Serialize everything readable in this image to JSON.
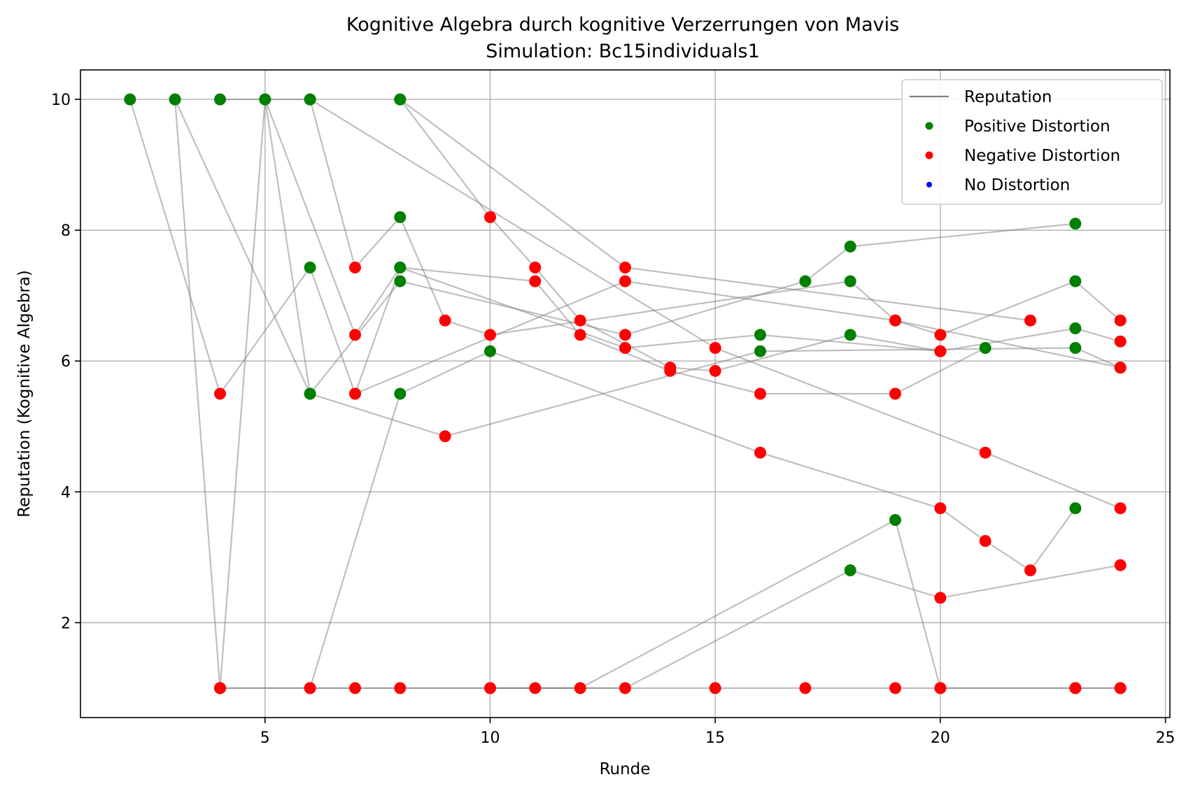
{
  "chart_data": {
    "type": "scatter",
    "title": "Kognitive Algebra durch kognitive Verzerrungen von Mavis",
    "subtitle": "Simulation: Bc15individuals1",
    "xlabel": "Runde",
    "ylabel": "Reputation (Kognitive Algebra)",
    "xlim": [
      0.9,
      25.1
    ],
    "ylim": [
      0.55,
      10.45
    ],
    "xticks": [
      5,
      10,
      15,
      20,
      25
    ],
    "yticks": [
      2,
      4,
      6,
      8,
      10
    ],
    "grid": true,
    "legend_position": "top-right",
    "legend": [
      {
        "label": "Reputation",
        "kind": "line",
        "color": "#808080"
      },
      {
        "label": "Positive Distortion",
        "kind": "dot",
        "color": "#008000"
      },
      {
        "label": "Negative Distortion",
        "kind": "dot",
        "color": "#ff0000"
      },
      {
        "label": "No Distortion",
        "kind": "dot",
        "color": "#0000ff"
      }
    ],
    "colors": {
      "positive": "#008000",
      "negative": "#ff0000",
      "none": "#0000ff",
      "line": "#808080"
    },
    "series": [
      {
        "points": [
          [
            2,
            10,
            "p"
          ],
          [
            4,
            5.5,
            "n"
          ],
          [
            6,
            7.43,
            "p"
          ],
          [
            7,
            5.5,
            "n"
          ],
          [
            8,
            7.43,
            "p"
          ],
          [
            13,
            6.2,
            "n"
          ],
          [
            16,
            6.4,
            "p"
          ],
          [
            20,
            6.15,
            "n"
          ],
          [
            23,
            6.5,
            "p"
          ],
          [
            24,
            6.3,
            "n"
          ]
        ]
      },
      {
        "points": [
          [
            3,
            10,
            "p"
          ],
          [
            4,
            1,
            "n"
          ],
          [
            5,
            10,
            "p"
          ],
          [
            6,
            5.5,
            "p"
          ],
          [
            9,
            4.85,
            "n"
          ],
          [
            16,
            6.15,
            "p"
          ],
          [
            23,
            6.2,
            "p"
          ],
          [
            24,
            5.9,
            "n"
          ]
        ]
      },
      {
        "points": [
          [
            3,
            10,
            "p"
          ],
          [
            6,
            5.5,
            "p"
          ],
          [
            8,
            7.22,
            "p"
          ],
          [
            13,
            6.4,
            "n"
          ],
          [
            17,
            7.22,
            "p"
          ],
          [
            18,
            7.75,
            "p"
          ],
          [
            23,
            8.1,
            "p"
          ]
        ]
      },
      {
        "points": [
          [
            4,
            10,
            "p"
          ],
          [
            6,
            10,
            "p"
          ],
          [
            7,
            7.43,
            "n"
          ],
          [
            8,
            8.2,
            "p"
          ],
          [
            9,
            6.62,
            "n"
          ],
          [
            10,
            6.4,
            "n"
          ],
          [
            18,
            7.22,
            "p"
          ],
          [
            19,
            6.62,
            "n"
          ],
          [
            20,
            6.4,
            "n"
          ],
          [
            23,
            7.22,
            "p"
          ],
          [
            24,
            6.62,
            "n"
          ]
        ]
      },
      {
        "points": [
          [
            5,
            10,
            "p"
          ],
          [
            7,
            6.4,
            "n"
          ],
          [
            8,
            7.43,
            "p"
          ],
          [
            11,
            7.22,
            "n"
          ],
          [
            12,
            6.4,
            "n"
          ],
          [
            14,
            5.85,
            "n"
          ],
          [
            16,
            5.5,
            "n"
          ],
          [
            19,
            5.5,
            "n"
          ],
          [
            21,
            6.2,
            "p"
          ]
        ]
      },
      {
        "points": [
          [
            8,
            10,
            "p"
          ],
          [
            10,
            8.2,
            "n"
          ],
          [
            11,
            7.43,
            "n"
          ],
          [
            12,
            6.62,
            "n"
          ],
          [
            14,
            5.9,
            "n"
          ],
          [
            15,
            5.85,
            "n"
          ],
          [
            18,
            6.4,
            "p"
          ],
          [
            20,
            6.15,
            "n"
          ]
        ]
      },
      {
        "points": [
          [
            8,
            10,
            "p"
          ],
          [
            13,
            7.43,
            "n"
          ],
          [
            22,
            6.62,
            "n"
          ]
        ]
      },
      {
        "points": [
          [
            4,
            1,
            "n"
          ],
          [
            6,
            1,
            "n"
          ],
          [
            8,
            5.5,
            "p"
          ],
          [
            10,
            6.15,
            "p"
          ],
          [
            16,
            4.6,
            "n"
          ],
          [
            20,
            3.75,
            "n"
          ],
          [
            21,
            3.25,
            "n"
          ],
          [
            22,
            2.8,
            "n"
          ],
          [
            23,
            3.75,
            "p"
          ]
        ]
      },
      {
        "points": [
          [
            4,
            1,
            "n"
          ],
          [
            7,
            1,
            "n"
          ],
          [
            10,
            1,
            "n"
          ],
          [
            12,
            1,
            "n"
          ],
          [
            19,
            3.57,
            "p"
          ],
          [
            20,
            1,
            "n"
          ],
          [
            23,
            1,
            "n"
          ],
          [
            24,
            1,
            "n"
          ]
        ]
      },
      {
        "points": [
          [
            6,
            1,
            "n"
          ],
          [
            8,
            1,
            "n"
          ],
          [
            11,
            1,
            "n"
          ],
          [
            13,
            1,
            "n"
          ],
          [
            18,
            2.8,
            "p"
          ],
          [
            20,
            2.38,
            "n"
          ],
          [
            24,
            2.88,
            "n"
          ]
        ]
      },
      {
        "points": [
          [
            10,
            1,
            "n"
          ],
          [
            15,
            1,
            "n"
          ],
          [
            17,
            1,
            "n"
          ],
          [
            19,
            1,
            "n"
          ],
          [
            20,
            1,
            "n"
          ],
          [
            23,
            1,
            "n"
          ],
          [
            24,
            1,
            "n"
          ]
        ]
      },
      {
        "points": [
          [
            7,
            5.5,
            "n"
          ],
          [
            13,
            7.22,
            "n"
          ],
          [
            19,
            6.62,
            "n"
          ],
          [
            24,
            5.9,
            "n"
          ]
        ]
      },
      {
        "points": [
          [
            6,
            10,
            "p"
          ],
          [
            15,
            6.2,
            "n"
          ],
          [
            21,
            4.6,
            "n"
          ],
          [
            24,
            3.75,
            "n"
          ]
        ]
      }
    ]
  }
}
